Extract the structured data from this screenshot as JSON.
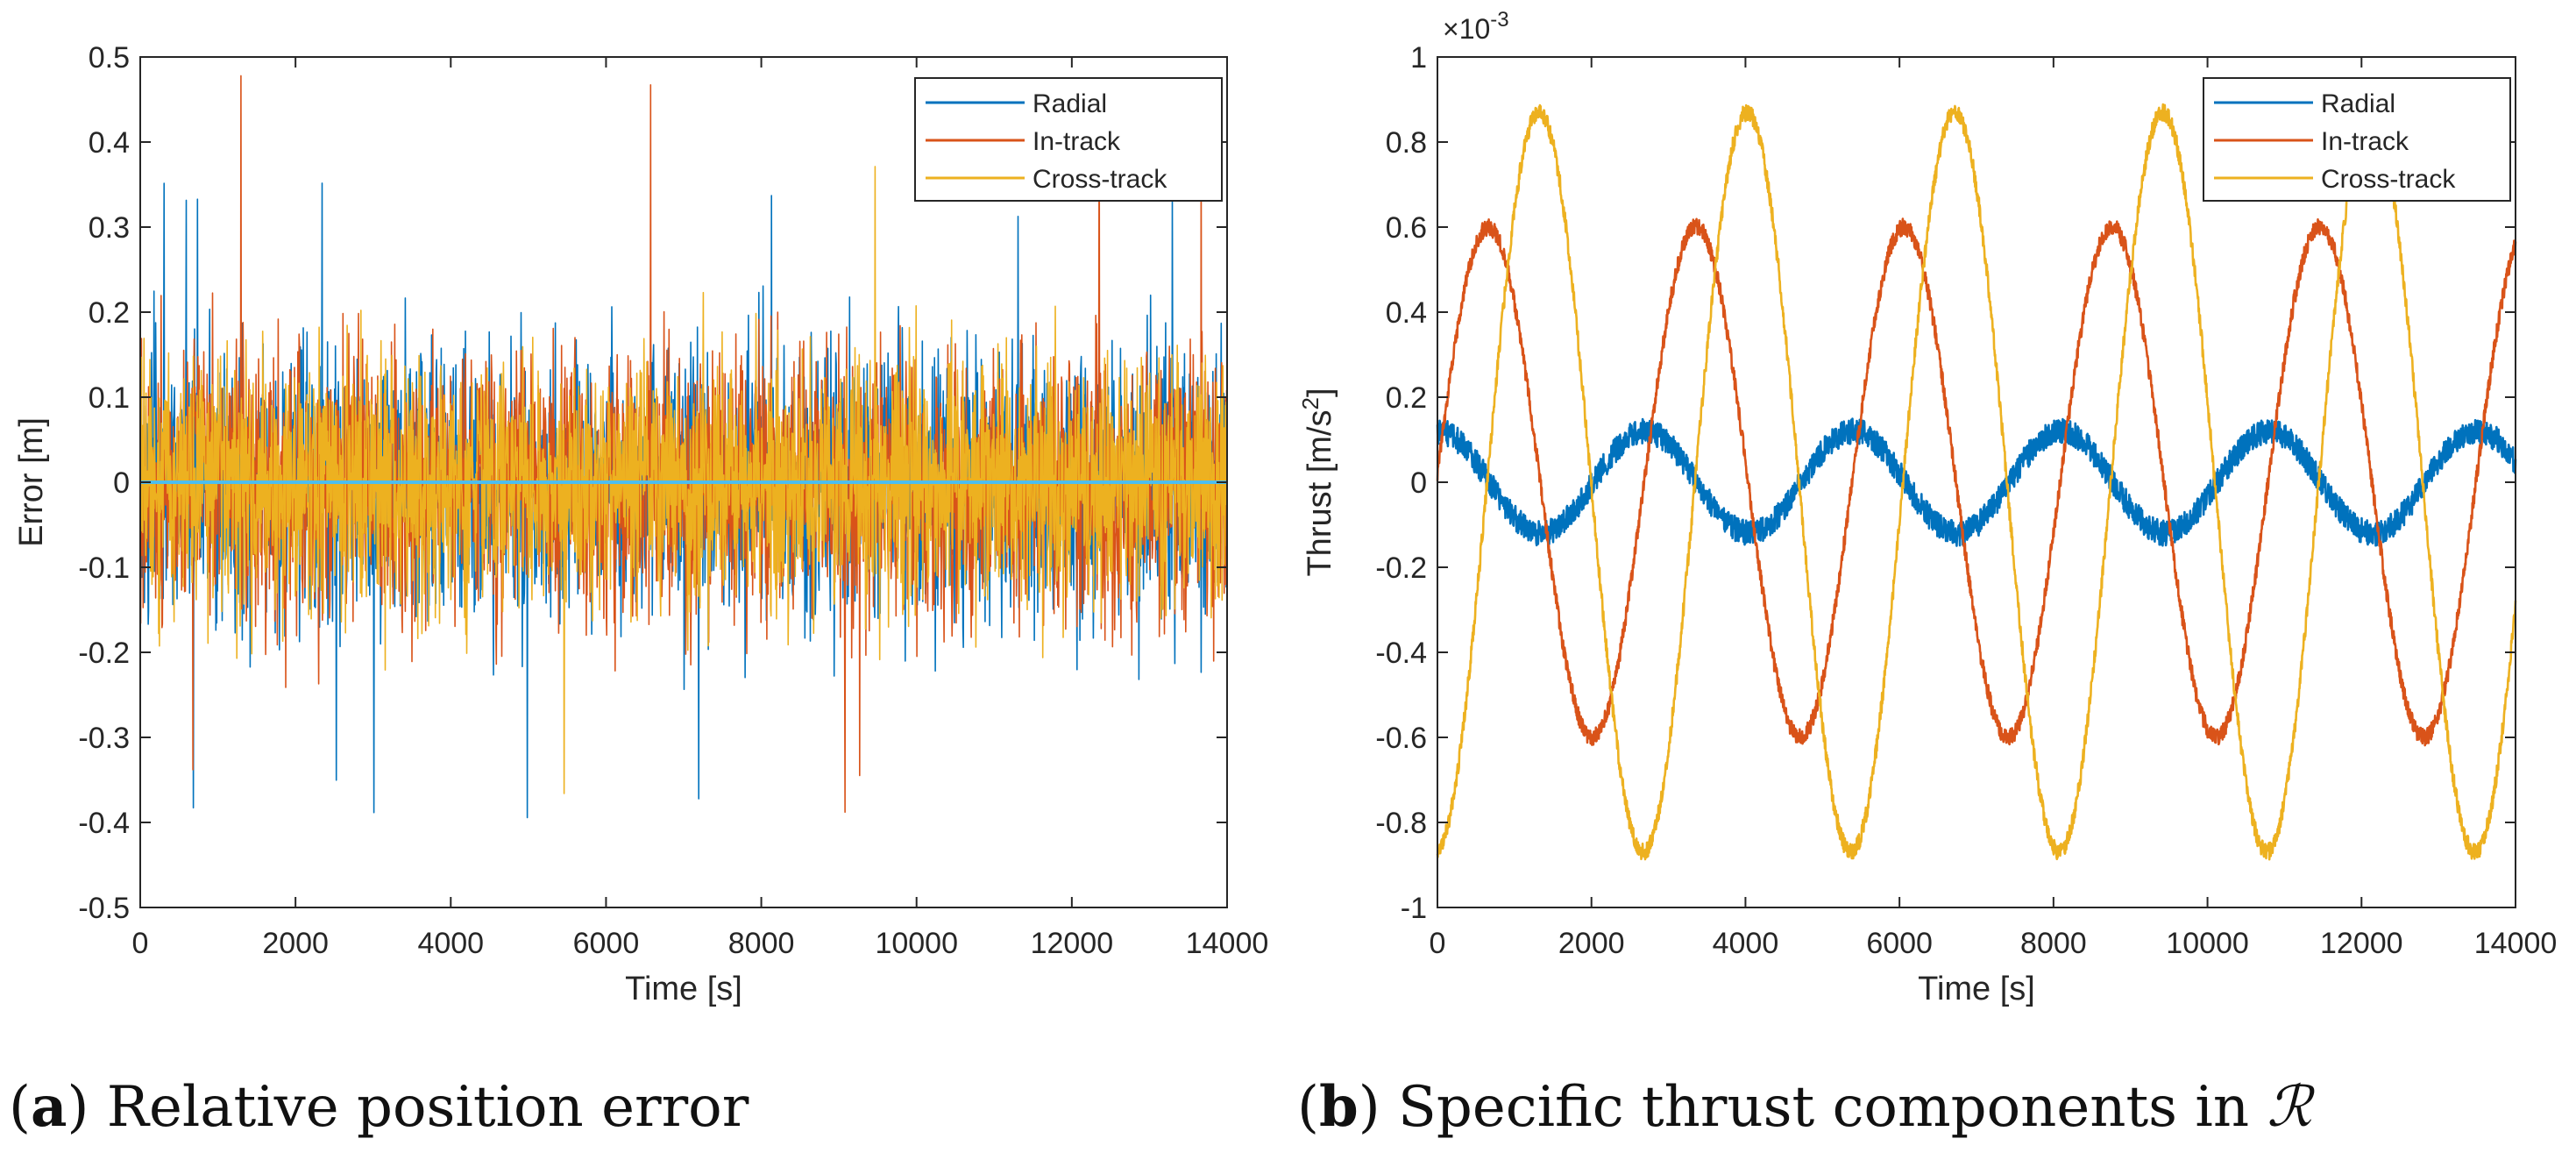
{
  "colors": {
    "radial": "#0072BD",
    "in_track": "#D95319",
    "cross_track": "#EDB120",
    "axis": "#262626"
  },
  "captions": [
    {
      "letter": "a",
      "open": "(",
      "close": ")",
      "text": " Relative position error"
    },
    {
      "letter": "b",
      "open": "(",
      "close": ")",
      "text": " Specific thrust components in ",
      "symbol": "ℛ"
    }
  ],
  "chart_data": [
    {
      "type": "line",
      "title": "",
      "xlabel": "Time [s]",
      "ylabel": "Error [m]",
      "xlim": [
        0,
        14000
      ],
      "ylim": [
        -0.5,
        0.5
      ],
      "xticks": [
        0,
        2000,
        4000,
        6000,
        8000,
        10000,
        12000,
        14000
      ],
      "yticks": [
        0.5,
        0.4,
        0.3,
        0.2,
        0.1,
        0,
        -0.1,
        -0.2,
        -0.3,
        -0.4,
        -0.5
      ],
      "xtick_labels": [
        "0",
        "2000",
        "4000",
        "6000",
        "8000",
        "10000",
        "12000",
        "14000"
      ],
      "ytick_labels": [
        "0.5",
        "0.4",
        "0.3",
        "0.2",
        "0.1",
        "0",
        "-0.1",
        "-0.2",
        "-0.3",
        "-0.4",
        "-0.5"
      ],
      "legend": "top-right",
      "series": [
        {
          "name": "Radial",
          "kind": "noise",
          "amplitude": 0.3,
          "peak_max": 0.36,
          "peak_min": -0.4
        },
        {
          "name": "In-track",
          "kind": "noise",
          "amplitude": 0.3,
          "peak_max": 0.48,
          "peak_min": -0.39
        },
        {
          "name": "Cross-track",
          "kind": "noise",
          "amplitude": 0.27,
          "peak_max": 0.38,
          "peak_min": -0.38
        }
      ]
    },
    {
      "type": "line",
      "title": "",
      "xlabel": "Time [s]",
      "ylabel": "Thrust [m/s",
      "ylabel_sup": "2",
      "ylabel_end": "]",
      "exponent_base": "×10",
      "exponent": "-3",
      "xlim": [
        0,
        14000
      ],
      "ylim": [
        -1,
        1
      ],
      "xticks": [
        0,
        2000,
        4000,
        6000,
        8000,
        10000,
        12000,
        14000
      ],
      "yticks": [
        1,
        0.8,
        0.6,
        0.4,
        0.2,
        0,
        -0.2,
        -0.4,
        -0.6,
        -0.8,
        -1
      ],
      "xtick_labels": [
        "0",
        "2000",
        "4000",
        "6000",
        "8000",
        "10000",
        "12000",
        "14000"
      ],
      "ytick_labels": [
        "1",
        "0.8",
        "0.6",
        "0.4",
        "0.2",
        "0",
        "-0.2",
        "-0.4",
        "-0.6",
        "-0.8",
        "-1"
      ],
      "legend": "top-right",
      "series": [
        {
          "name": "Radial",
          "kind": "sine",
          "amplitude": 0.12,
          "period": 2700,
          "phase_time": 0,
          "offset": 0,
          "noise": 0.03
        },
        {
          "name": "In-track",
          "kind": "sine",
          "amplitude": 0.6,
          "period": 2700,
          "phase_time": 660,
          "offset": 0,
          "noise": 0.02
        },
        {
          "name": "Cross-track",
          "kind": "sine",
          "amplitude": 0.87,
          "period": 2700,
          "phase_time": 1320,
          "offset": 0,
          "noise": 0.02
        }
      ]
    }
  ]
}
